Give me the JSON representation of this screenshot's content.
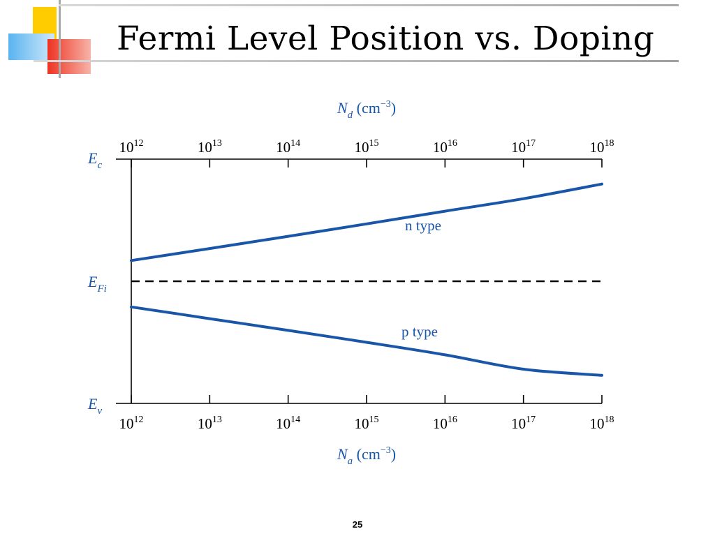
{
  "slide": {
    "title": "Fermi Level Position vs. Doping",
    "page_number": "25",
    "accent_colors": {
      "yellow": "#ffcc00",
      "blue": "#5ab4f0",
      "red": "#ee3322",
      "gray": "#a0a0a0"
    }
  },
  "chart_data": {
    "type": "line",
    "x_scale": "log",
    "x_top": {
      "label": "N",
      "label_sub": "d",
      "unit": " (cm",
      "unit_sup": "−3",
      "unit_close": ")"
    },
    "x_bottom": {
      "label": "N",
      "label_sub": "a",
      "unit": " (cm",
      "unit_sup": "−3",
      "unit_close": ")"
    },
    "x_ticks": [
      {
        "base": "10",
        "exp": "12",
        "value": 1000000000000.0
      },
      {
        "base": "10",
        "exp": "13",
        "value": 10000000000000.0
      },
      {
        "base": "10",
        "exp": "14",
        "value": 100000000000000.0
      },
      {
        "base": "10",
        "exp": "15",
        "value": 1000000000000000.0
      },
      {
        "base": "10",
        "exp": "16",
        "value": 1e+16
      },
      {
        "base": "10",
        "exp": "17",
        "value": 1e+17
      },
      {
        "base": "10",
        "exp": "18",
        "value": 1e+18
      }
    ],
    "xlim": [
      1000000000000.0,
      1e+18
    ],
    "y_levels": [
      {
        "main": "E",
        "sub": "c",
        "value": 1.0
      },
      {
        "main": "E",
        "sub": "Fi",
        "value": 0.5
      },
      {
        "main": "E",
        "sub": "v",
        "value": 0.0
      }
    ],
    "ylim": [
      0,
      1
    ],
    "reference_line": {
      "level": "E_Fi",
      "value": 0.5,
      "style": "dashed",
      "color": "#000000"
    },
    "series": [
      {
        "name": "n type",
        "color": "#1a56a8",
        "x": [
          1000000000000.0,
          10000000000000.0,
          100000000000000.0,
          1000000000000000.0,
          1e+16,
          1e+17,
          1e+18
        ],
        "y": [
          0.585,
          0.634,
          0.684,
          0.735,
          0.787,
          0.838,
          0.898
        ]
      },
      {
        "name": "p type",
        "color": "#1a56a8",
        "x": [
          1000000000000.0,
          10000000000000.0,
          100000000000000.0,
          1000000000000000.0,
          1e+16,
          1e+17,
          1e+18
        ],
        "y": [
          0.395,
          0.347,
          0.299,
          0.25,
          0.199,
          0.14,
          0.115
        ]
      }
    ],
    "grid": false,
    "legend": "none"
  }
}
